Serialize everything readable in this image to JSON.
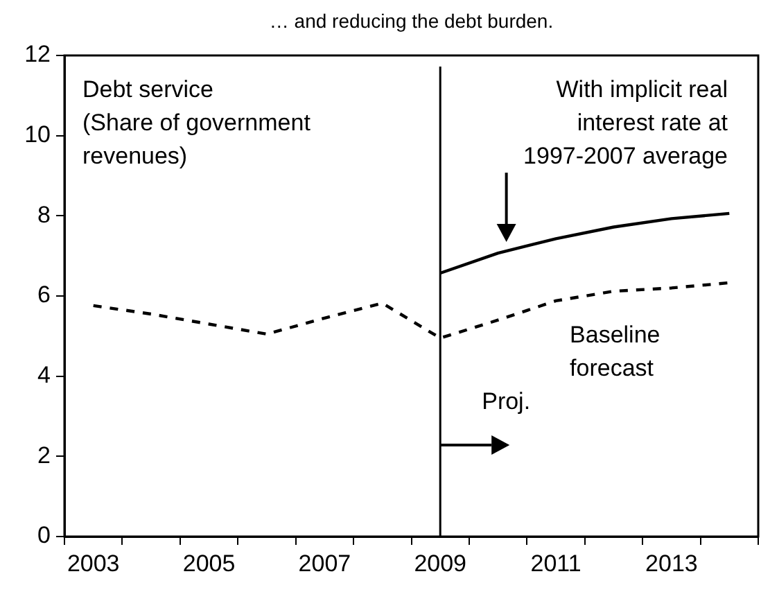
{
  "chart_data": {
    "type": "line",
    "title": "… and reducing the debt burden.",
    "ylabel": "Debt service (Share of government revenues)",
    "categories": [
      "2003",
      null,
      "2005",
      null,
      "2007",
      null,
      "2009",
      null,
      "2011",
      null,
      "2013",
      null
    ],
    "series": [
      {
        "name": "With implicit real interest rate at 1997-2007 average",
        "color": "#000000",
        "line_style": "solid",
        "values": [
          null,
          null,
          null,
          null,
          null,
          null,
          6.57,
          7.07,
          7.43,
          7.72,
          7.93,
          8.06
        ]
      },
      {
        "name": "Baseline forecast",
        "color": "#000000",
        "line_style": "dashed",
        "values": [
          5.76,
          5.55,
          5.3,
          5.05,
          5.45,
          5.82,
          4.95,
          5.4,
          5.88,
          6.12,
          6.2,
          6.33
        ]
      }
    ],
    "ylim": [
      0,
      12
    ],
    "yticks": [
      0,
      2,
      4,
      6,
      8,
      10,
      12
    ],
    "grid": false,
    "legend": false,
    "marker": "none",
    "ref_lines": [
      {
        "axis": "x",
        "value": "2009",
        "label": "Proj."
      }
    ]
  }
}
